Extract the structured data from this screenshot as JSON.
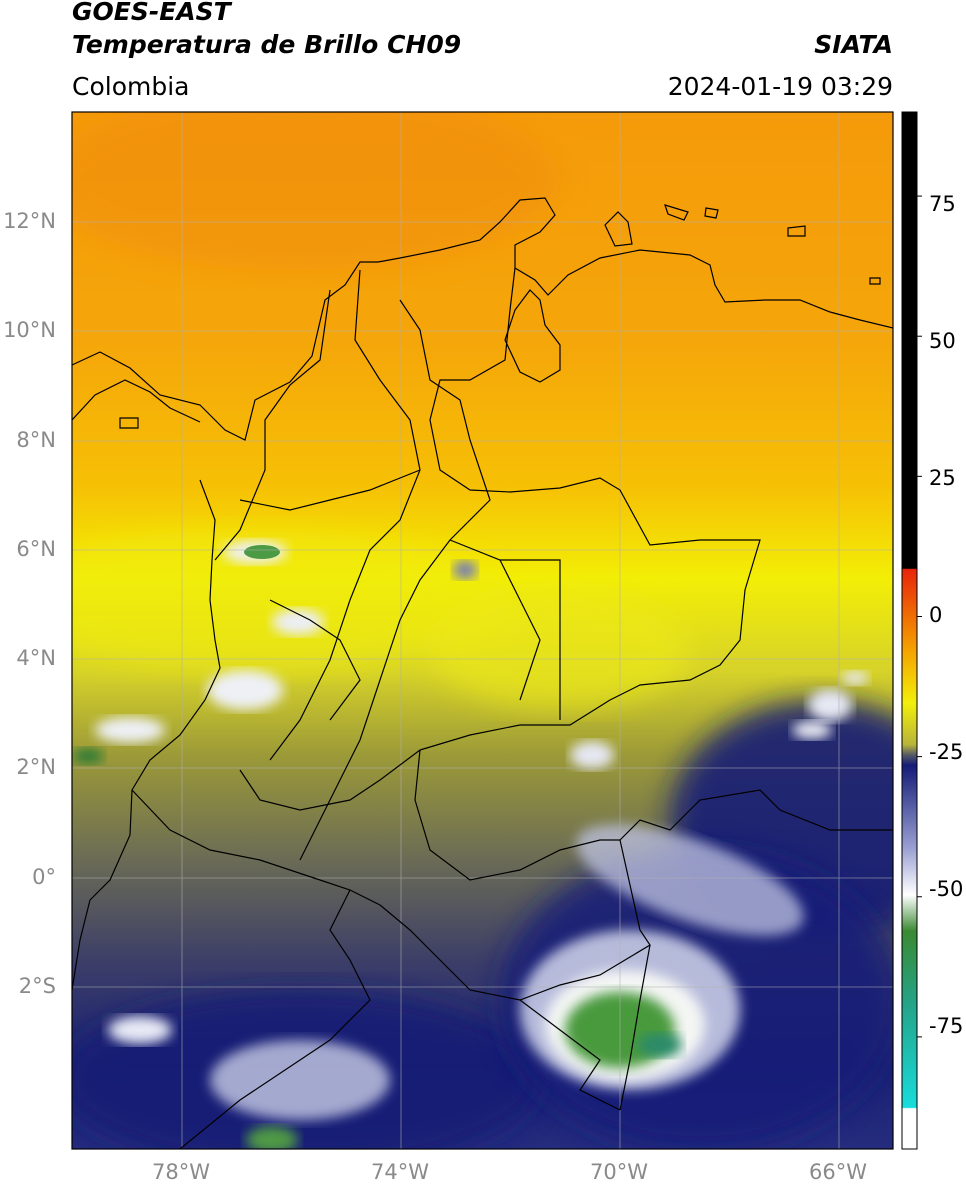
{
  "header": {
    "satellite": "GOES-EAST",
    "product": "Temperatura de Brillo CH09",
    "institution": "SIATA",
    "region": "Colombia",
    "timestamp": "2024-01-19 03:29"
  },
  "map": {
    "lat_range": [
      -5,
      14
    ],
    "lon_range": [
      -80,
      -65
    ],
    "lat_ticks": [
      {
        "label": "12°N",
        "value": 12
      },
      {
        "label": "10°N",
        "value": 10
      },
      {
        "label": "8°N",
        "value": 8
      },
      {
        "label": "6°N",
        "value": 6
      },
      {
        "label": "4°N",
        "value": 4
      },
      {
        "label": "2°N",
        "value": 2
      },
      {
        "label": "0°",
        "value": 0
      },
      {
        "label": "2°S",
        "value": -2
      }
    ],
    "lon_ticks": [
      {
        "label": "78°W",
        "value": -78
      },
      {
        "label": "74°W",
        "value": -74
      },
      {
        "label": "70°W",
        "value": -70
      },
      {
        "label": "66°W",
        "value": -66
      }
    ]
  },
  "colorbar": {
    "range": [
      -95,
      90
    ],
    "ticks": [
      "75",
      "50",
      "25",
      "0",
      "-25",
      "-50",
      "-75"
    ],
    "tick_values": [
      75,
      50,
      25,
      0,
      -25,
      -50,
      -75
    ],
    "colors": {
      "warm_black": "#000000",
      "red": "#e8240a",
      "orange": "#f5a400",
      "yellow": "#f2ef0a",
      "olive": "#8c8c3a",
      "gray": "#565a66",
      "navy": "#141c78",
      "white": "#ffffff",
      "green": "#3a8a32",
      "cyan": "#18c8c8"
    }
  }
}
